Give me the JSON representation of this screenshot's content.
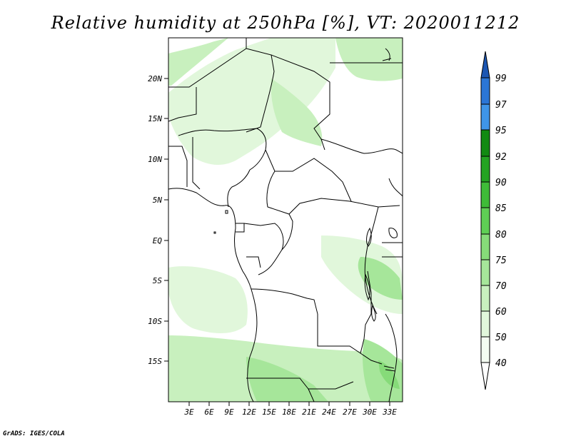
{
  "title": "Relative humidity at 250hPa [%], VT: 2020011212",
  "footer": "GrADS: IGES/COLA",
  "map": {
    "lat_labels": [
      "20N",
      "15N",
      "10N",
      "5N",
      "EQ",
      "5S",
      "10S",
      "15S"
    ],
    "lon_labels": [
      "3E",
      "6E",
      "9E",
      "12E",
      "15E",
      "18E",
      "21E",
      "24E",
      "27E",
      "30E",
      "33E"
    ]
  },
  "colorbar": {
    "levels": [
      "40",
      "50",
      "60",
      "70",
      "75",
      "80",
      "85",
      "90",
      "92",
      "95",
      "97",
      "99"
    ],
    "colors": [
      "#f4fcf2",
      "#e1f7db",
      "#c8f0be",
      "#a6e69a",
      "#86db79",
      "#5fcf55",
      "#3fbc38",
      "#24a322",
      "#128a12",
      "#3f95e8",
      "#2b76d6",
      "#1c56b2"
    ]
  }
}
